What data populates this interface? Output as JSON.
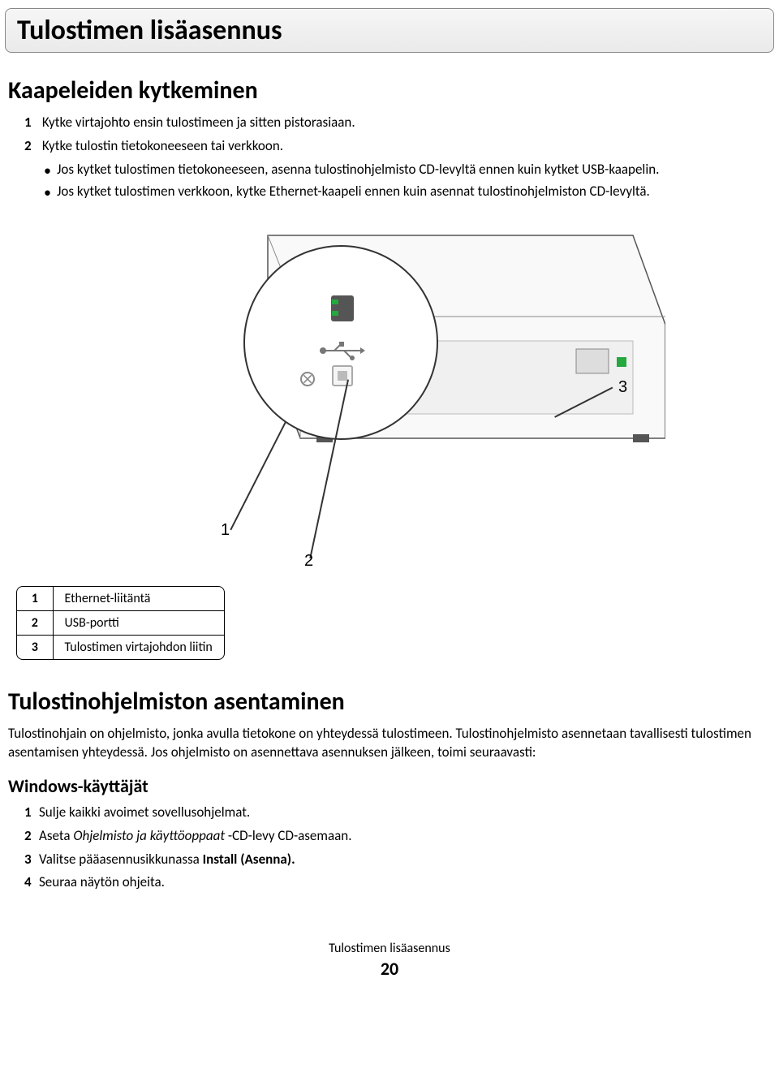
{
  "header": {
    "title": "Tulostimen lisäasennus"
  },
  "section1": {
    "heading": "Kaapeleiden kytkeminen",
    "steps": [
      {
        "n": "1",
        "text": "Kytke virtajohto ensin tulostimeen ja sitten pistorasiaan."
      },
      {
        "n": "2",
        "text": "Kytke tulostin tietokoneeseen tai verkkoon."
      }
    ],
    "bullets": [
      "Jos kytket tulostimen tietokoneeseen, asenna tulostinohjelmisto CD-levyltä ennen kuin kytket USB-kaapelin.",
      "Jos kytket tulostimen verkkoon, kytke Ethernet-kaapeli ennen kuin asennat tulostinohjelmiston CD-levyltä."
    ]
  },
  "figure": {
    "callouts": {
      "c1": "1",
      "c2": "2",
      "c3": "3"
    },
    "eth_led_color": "#25a83e"
  },
  "parts": [
    {
      "n": "1",
      "label": "Ethernet-liitäntä"
    },
    {
      "n": "2",
      "label": "USB-portti"
    },
    {
      "n": "3",
      "label": "Tulostimen virtajohdon liitin"
    }
  ],
  "section2": {
    "heading": "Tulostinohjelmiston asentaminen",
    "paragraph": "Tulostinohjain on ohjelmisto, jonka avulla tietokone on yhteydessä tulostimeen. Tulostinohjelmisto asennetaan tavallisesti tulostimen asentamisen yhteydessä. Jos ohjelmisto on asennettava asennuksen jälkeen, toimi seuraavasti:",
    "subheading": "Windows-käyttäjät",
    "steps": [
      {
        "n": "1",
        "parts": [
          {
            "t": "Sulje kaikki avoimet sovellusohjelmat.",
            "style": ""
          }
        ]
      },
      {
        "n": "2",
        "parts": [
          {
            "t": "Aseta ",
            "style": ""
          },
          {
            "t": "Ohjelmisto ja käyttöoppaat",
            "style": "italic"
          },
          {
            "t": " -CD-levy CD-asemaan.",
            "style": ""
          }
        ]
      },
      {
        "n": "3",
        "parts": [
          {
            "t": "Valitse pääasennusikkunassa ",
            "style": ""
          },
          {
            "t": "Install (Asenna).",
            "style": "bold"
          }
        ]
      },
      {
        "n": "4",
        "parts": [
          {
            "t": "Seuraa näytön ohjeita.",
            "style": ""
          }
        ]
      }
    ]
  },
  "footer": {
    "label": "Tulostimen lisäasennus",
    "page": "20"
  }
}
